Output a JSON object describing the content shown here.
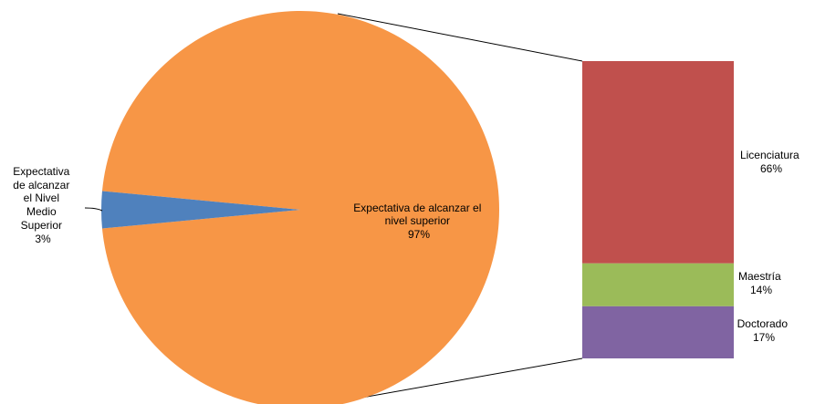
{
  "chart_data": {
    "type": "bar-of-pie",
    "pie": {
      "slices": [
        {
          "label_lines": [
            "Expectativa de alcanzar el",
            "nivel superior"
          ],
          "pct_label": "97%",
          "value": 97,
          "color": "#f79646"
        },
        {
          "label_lines": [
            "Expectativa",
            "de alcanzar",
            "el Nivel",
            "Medio",
            "Superior"
          ],
          "pct_label": "3%",
          "value": 3,
          "color": "#4f81bd"
        }
      ]
    },
    "bar": {
      "segments": [
        {
          "label": "Licenciatura",
          "pct_label": "66%",
          "value": 66,
          "color": "#c0504d"
        },
        {
          "label": "Maestría",
          "pct_label": "14%",
          "value": 14,
          "color": "#9bbb59"
        },
        {
          "label": "Doctorado",
          "pct_label": "17%",
          "value": 17,
          "color": "#8064a2"
        }
      ]
    }
  }
}
